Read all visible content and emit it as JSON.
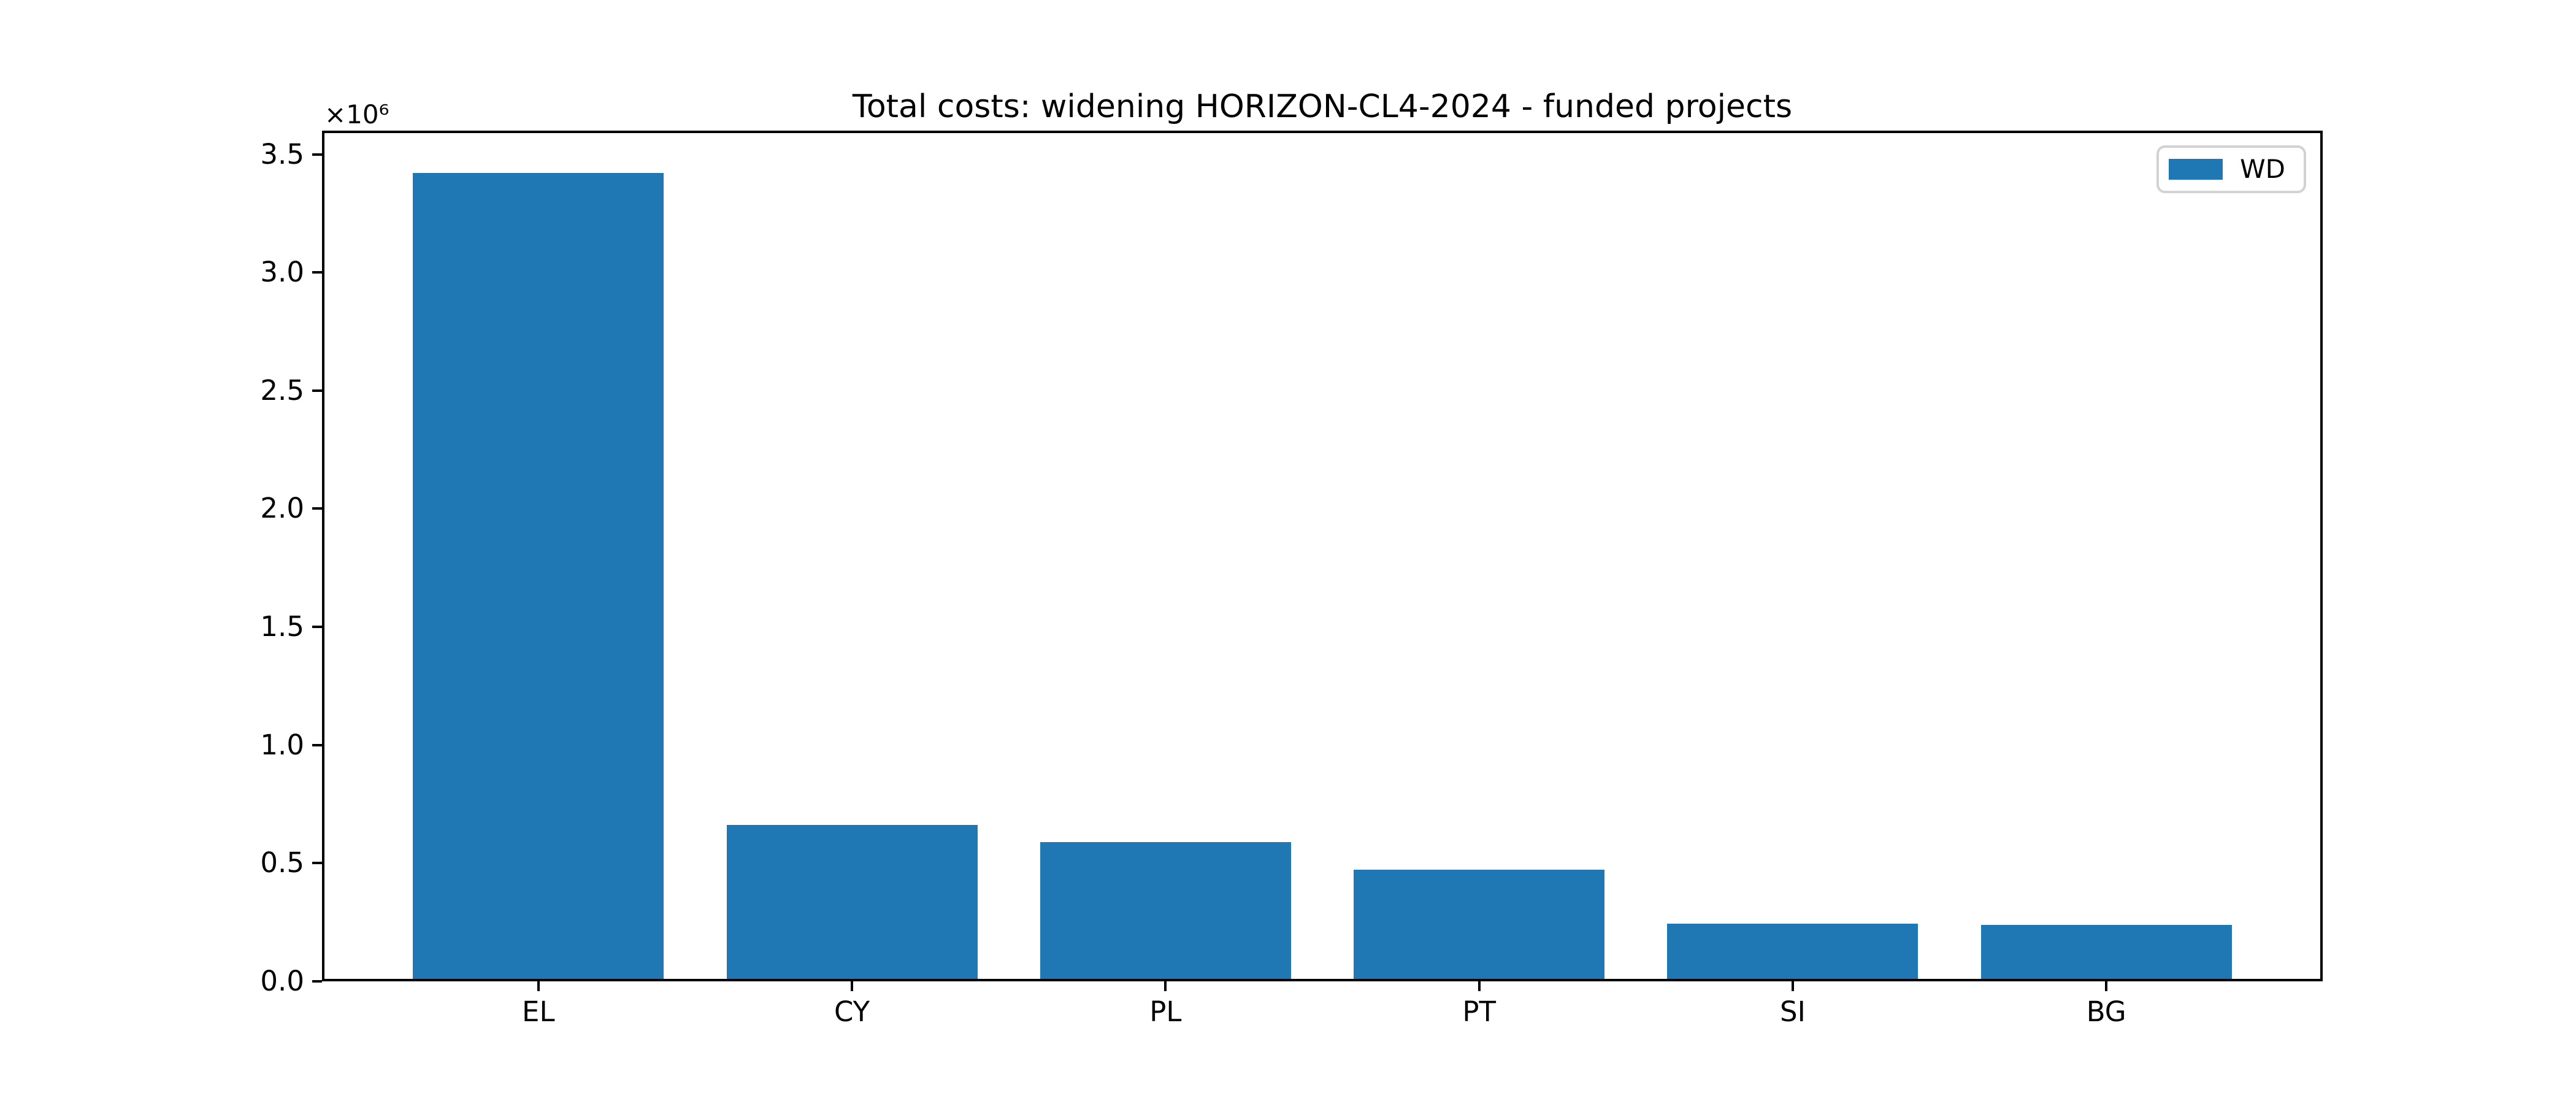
{
  "chart_data": {
    "type": "bar",
    "title": "Total costs: widening HORIZON-CL4-2024 - funded projects",
    "categories": [
      "EL",
      "CY",
      "PL",
      "PT",
      "SI",
      "BG"
    ],
    "series": [
      {
        "name": "WD",
        "color": "#1f77b4",
        "values": [
          3420000,
          662000,
          590000,
          473000,
          244000,
          238000
        ]
      }
    ],
    "xlabel": "",
    "ylabel": "",
    "ylim": [
      0,
      3600000
    ],
    "yticks": [
      0,
      500000,
      1000000,
      1500000,
      2000000,
      2500000,
      3000000,
      3500000
    ],
    "ytick_labels": [
      "0.0",
      "0.5",
      "1.0",
      "1.5",
      "2.0",
      "2.5",
      "3.0",
      "3.5"
    ],
    "y_offset_label": "×10⁶",
    "grid": false,
    "legend": {
      "position": "upper right",
      "entries": [
        {
          "label": "WD",
          "color": "#1f77b4"
        }
      ]
    },
    "bar_width_fraction": 0.8,
    "x_margin_fraction": 0.05,
    "axis_color": "#000000",
    "text_color": "#000000",
    "background_color": "#ffffff"
  }
}
